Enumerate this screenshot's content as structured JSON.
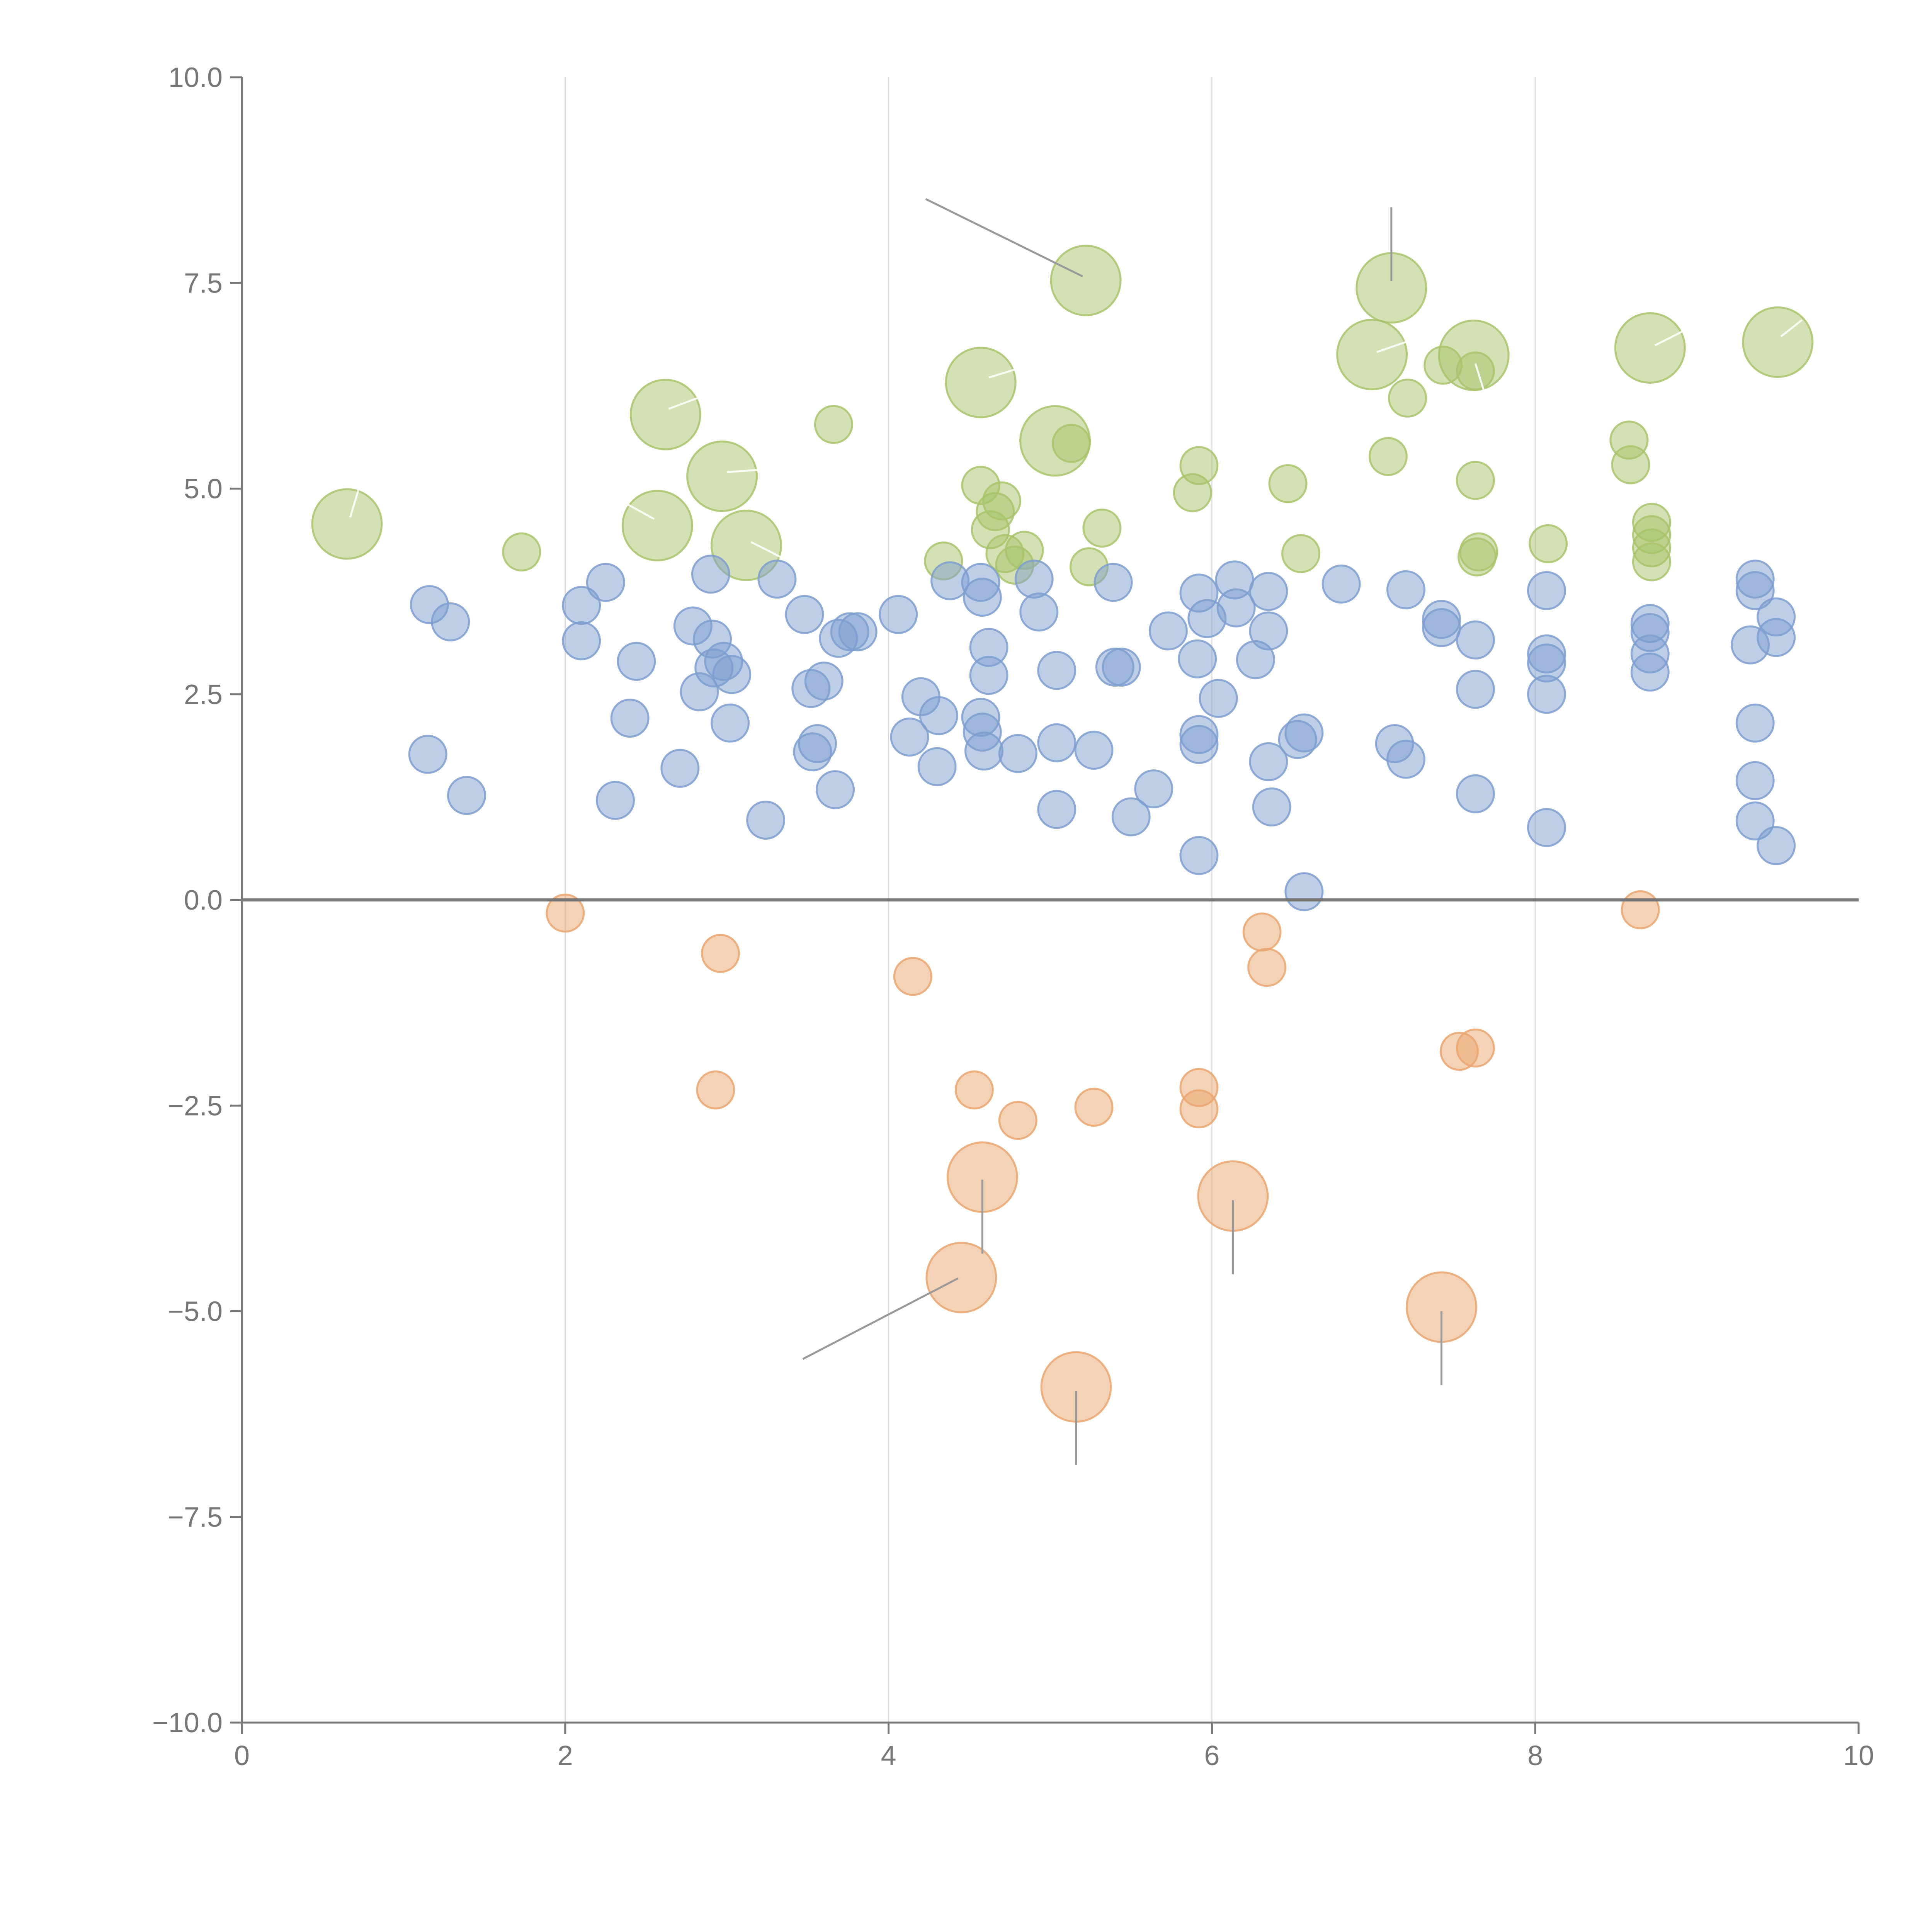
{
  "chart_data": {
    "type": "scatter",
    "title": "",
    "xlabel": "",
    "ylabel": "",
    "xlim": [
      0,
      10
    ],
    "ylim": [
      -10,
      10
    ],
    "grid": "vertical",
    "xticks": [
      0,
      2,
      4,
      6,
      8,
      10
    ],
    "xtick_labels": [
      "0",
      "2",
      "4",
      "6",
      "8",
      "10"
    ],
    "yticks": [
      10,
      7.5,
      5,
      2.5,
      0,
      -2.5,
      -5,
      -7.5,
      -10
    ],
    "ytick_labels": [
      "10.0",
      "7.5",
      "5.0",
      "2.5",
      "0.0",
      "−2.5",
      "−5.0",
      "−7.5",
      "−10.0"
    ],
    "zero_line": 0,
    "series": [
      {
        "name": "green",
        "color": "#a8c46a",
        "points": [
          [
            0.65,
            4.57,
            2
          ],
          [
            1.73,
            4.23,
            1
          ],
          [
            2.57,
            4.55,
            2
          ],
          [
            2.62,
            5.9,
            2
          ],
          [
            2.97,
            5.15,
            2
          ],
          [
            3.12,
            4.31,
            2
          ],
          [
            3.66,
            5.78,
            1
          ],
          [
            4.34,
            4.12,
            1
          ],
          [
            4.57,
            6.29,
            2
          ],
          [
            4.57,
            5.04,
            1
          ],
          [
            4.63,
            4.5,
            1
          ],
          [
            4.66,
            4.72,
            1
          ],
          [
            4.7,
            4.85,
            1
          ],
          [
            4.72,
            4.21,
            1
          ],
          [
            4.78,
            4.07,
            1
          ],
          [
            4.84,
            4.25,
            1
          ],
          [
            5.03,
            5.58,
            2
          ],
          [
            5.13,
            5.55,
            1
          ],
          [
            5.22,
            7.53,
            2
          ],
          [
            5.24,
            4.05,
            1
          ],
          [
            5.32,
            4.52,
            1
          ],
          [
            5.88,
            4.95,
            1
          ],
          [
            5.92,
            5.28,
            1
          ],
          [
            6.47,
            5.06,
            1
          ],
          [
            6.55,
            4.21,
            1
          ],
          [
            6.99,
            6.63,
            2
          ],
          [
            7.09,
            5.39,
            1
          ],
          [
            7.11,
            7.44,
            2
          ],
          [
            7.21,
            6.1,
            1
          ],
          [
            7.43,
            6.5,
            1
          ],
          [
            7.62,
            6.62,
            2
          ],
          [
            7.63,
            5.1,
            1
          ],
          [
            7.63,
            6.43,
            1
          ],
          [
            7.64,
            4.17,
            1
          ],
          [
            7.65,
            4.23,
            1
          ],
          [
            8.08,
            4.33,
            1
          ],
          [
            8.58,
            5.59,
            1
          ],
          [
            8.59,
            5.29,
            1
          ],
          [
            8.71,
            6.71,
            2
          ],
          [
            8.72,
            4.59,
            1
          ],
          [
            8.72,
            4.44,
            1
          ],
          [
            8.72,
            4.28,
            1
          ],
          [
            8.72,
            4.11,
            1
          ],
          [
            9.5,
            6.78,
            2
          ]
        ]
      },
      {
        "name": "blue",
        "color": "#7e9dcf",
        "points": [
          [
            1.16,
            3.59,
            1
          ],
          [
            1.29,
            3.38,
            1
          ],
          [
            1.15,
            1.77,
            1
          ],
          [
            1.39,
            1.27,
            1
          ],
          [
            2.1,
            3.58,
            1
          ],
          [
            2.1,
            3.15,
            1
          ],
          [
            2.25,
            3.86,
            1
          ],
          [
            2.44,
            2.9,
            1
          ],
          [
            2.4,
            2.21,
            1
          ],
          [
            2.31,
            1.21,
            1
          ],
          [
            2.71,
            1.6,
            1
          ],
          [
            2.79,
            3.33,
            1
          ],
          [
            2.83,
            2.53,
            1
          ],
          [
            2.9,
            3.96,
            1
          ],
          [
            2.91,
            3.17,
            1
          ],
          [
            2.92,
            2.82,
            1
          ],
          [
            2.98,
            2.9,
            1
          ],
          [
            3.03,
            2.74,
            1
          ],
          [
            3.02,
            2.15,
            1
          ],
          [
            3.24,
            0.97,
            1
          ],
          [
            3.31,
            3.9,
            1
          ],
          [
            3.48,
            3.47,
            1
          ],
          [
            3.52,
            2.57,
            1
          ],
          [
            3.53,
            1.8,
            1
          ],
          [
            3.56,
            1.9,
            1
          ],
          [
            3.6,
            2.66,
            1
          ],
          [
            3.67,
            1.34,
            1
          ],
          [
            3.69,
            3.18,
            1
          ],
          [
            3.76,
            3.26,
            1
          ],
          [
            3.81,
            3.26,
            1
          ],
          [
            4.06,
            3.47,
            1
          ],
          [
            4.13,
            1.98,
            1
          ],
          [
            4.2,
            2.47,
            1
          ],
          [
            4.3,
            1.62,
            1
          ],
          [
            4.31,
            2.24,
            1
          ],
          [
            4.38,
            3.88,
            1
          ],
          [
            4.57,
            3.86,
            1
          ],
          [
            4.58,
            3.68,
            1
          ],
          [
            4.57,
            2.22,
            1
          ],
          [
            4.58,
            2.04,
            1
          ],
          [
            4.59,
            1.81,
            1
          ],
          [
            4.62,
            2.73,
            1
          ],
          [
            4.62,
            3.07,
            1
          ],
          [
            4.8,
            1.78,
            1
          ],
          [
            4.9,
            3.9,
            1
          ],
          [
            4.93,
            3.5,
            1
          ],
          [
            5.04,
            2.79,
            1
          ],
          [
            5.04,
            1.1,
            1
          ],
          [
            5.04,
            1.91,
            1
          ],
          [
            5.27,
            1.82,
            1
          ],
          [
            5.39,
            3.86,
            1
          ],
          [
            5.4,
            2.83,
            1
          ],
          [
            5.44,
            2.83,
            1
          ],
          [
            5.5,
            1.01,
            1
          ],
          [
            5.64,
            1.35,
            1
          ],
          [
            5.73,
            3.27,
            1
          ],
          [
            5.91,
            2.93,
            1
          ],
          [
            5.92,
            3.73,
            1
          ],
          [
            5.92,
            2.01,
            1
          ],
          [
            5.92,
            1.89,
            1
          ],
          [
            5.92,
            0.54,
            1
          ],
          [
            5.97,
            3.42,
            1
          ],
          [
            6.04,
            2.45,
            1
          ],
          [
            6.14,
            3.89,
            1
          ],
          [
            6.15,
            3.55,
            1
          ],
          [
            6.27,
            2.92,
            1
          ],
          [
            6.35,
            3.75,
            1
          ],
          [
            6.35,
            3.27,
            1
          ],
          [
            6.35,
            1.68,
            1
          ],
          [
            6.37,
            1.13,
            1
          ],
          [
            6.53,
            1.95,
            1
          ],
          [
            6.57,
            2.03,
            1
          ],
          [
            6.57,
            0.1,
            1
          ],
          [
            6.8,
            3.84,
            1
          ],
          [
            7.13,
            1.9,
            1
          ],
          [
            7.2,
            1.71,
            1
          ],
          [
            7.2,
            3.77,
            1
          ],
          [
            7.42,
            3.41,
            1
          ],
          [
            7.42,
            3.31,
            1
          ],
          [
            7.63,
            3.16,
            1
          ],
          [
            7.63,
            2.56,
            1
          ],
          [
            7.63,
            1.29,
            1
          ],
          [
            8.07,
            3.76,
            1
          ],
          [
            8.07,
            2.99,
            1
          ],
          [
            8.07,
            2.88,
            1
          ],
          [
            8.07,
            2.5,
            1
          ],
          [
            8.07,
            0.88,
            1
          ],
          [
            8.71,
            3.36,
            1
          ],
          [
            8.71,
            3.25,
            1
          ],
          [
            8.71,
            2.99,
            1
          ],
          [
            8.71,
            2.77,
            1
          ],
          [
            9.33,
            3.1,
            1
          ],
          [
            9.36,
            3.9,
            1
          ],
          [
            9.36,
            3.76,
            1
          ],
          [
            9.36,
            2.15,
            1
          ],
          [
            9.36,
            1.45,
            1
          ],
          [
            9.36,
            0.96,
            1
          ],
          [
            9.49,
            3.44,
            1
          ],
          [
            9.49,
            3.19,
            1
          ],
          [
            9.49,
            0.66,
            1
          ]
        ]
      },
      {
        "name": "orange",
        "color": "#eaa66e",
        "points": [
          [
            2.0,
            -0.16,
            1
          ],
          [
            2.96,
            -0.65,
            1
          ],
          [
            2.93,
            -2.31,
            1
          ],
          [
            4.15,
            -0.93,
            1
          ],
          [
            4.53,
            -2.31,
            1
          ],
          [
            4.58,
            -3.37,
            2
          ],
          [
            4.45,
            -4.59,
            2
          ],
          [
            4.8,
            -2.68,
            1
          ],
          [
            5.16,
            -5.92,
            2
          ],
          [
            5.27,
            -2.52,
            1
          ],
          [
            5.92,
            -2.28,
            1
          ],
          [
            5.92,
            -2.54,
            1
          ],
          [
            6.13,
            -3.6,
            2
          ],
          [
            6.31,
            -0.39,
            1
          ],
          [
            6.34,
            -0.82,
            1
          ],
          [
            7.42,
            -4.95,
            2
          ],
          [
            7.53,
            -1.84,
            1
          ],
          [
            7.63,
            -1.8,
            1
          ],
          [
            8.65,
            -0.12,
            1
          ]
        ]
      }
    ],
    "leader_lines": [
      {
        "color": "#999999",
        "x1": 5.2,
        "y1": 7.58,
        "x2": 4.23,
        "y2": 8.52
      },
      {
        "color": "#999999",
        "x1": 7.11,
        "y1": 7.52,
        "x2": 7.11,
        "y2": 8.42
      },
      {
        "color": "#999999",
        "x1": 4.58,
        "y1": -3.4,
        "x2": 4.58,
        "y2": -4.3
      },
      {
        "color": "#999999",
        "x1": 4.43,
        "y1": -4.6,
        "x2": 3.47,
        "y2": -5.58
      },
      {
        "color": "#999999",
        "x1": 6.13,
        "y1": -3.65,
        "x2": 6.13,
        "y2": -4.55
      },
      {
        "color": "#999999",
        "x1": 7.42,
        "y1": -5.0,
        "x2": 7.42,
        "y2": -5.9
      },
      {
        "color": "#999999",
        "x1": 5.16,
        "y1": -5.97,
        "x2": 5.16,
        "y2": -6.87
      },
      {
        "color": "#ffffff",
        "x1": 0.67,
        "y1": 4.65,
        "x2": 0.72,
        "y2": 4.98
      },
      {
        "color": "#ffffff",
        "x1": 2.64,
        "y1": 5.97,
        "x2": 2.9,
        "y2": 6.16
      },
      {
        "color": "#ffffff",
        "x1": 2.55,
        "y1": 4.63,
        "x2": 2.32,
        "y2": 4.88
      },
      {
        "color": "#ffffff",
        "x1": 3.0,
        "y1": 5.2,
        "x2": 3.35,
        "y2": 5.25
      },
      {
        "color": "#ffffff",
        "x1": 3.15,
        "y1": 4.35,
        "x2": 3.4,
        "y2": 4.1
      },
      {
        "color": "#ffffff",
        "x1": 4.62,
        "y1": 6.35,
        "x2": 4.95,
        "y2": 6.55
      },
      {
        "color": "#ffffff",
        "x1": 7.02,
        "y1": 6.66,
        "x2": 7.3,
        "y2": 6.85
      },
      {
        "color": "#ffffff",
        "x1": 7.63,
        "y1": 6.52,
        "x2": 7.72,
        "y2": 5.95
      },
      {
        "color": "#ffffff",
        "x1": 8.74,
        "y1": 6.74,
        "x2": 9.0,
        "y2": 7.0
      },
      {
        "color": "#ffffff",
        "x1": 9.52,
        "y1": 6.85,
        "x2": 9.65,
        "y2": 7.05
      }
    ]
  }
}
